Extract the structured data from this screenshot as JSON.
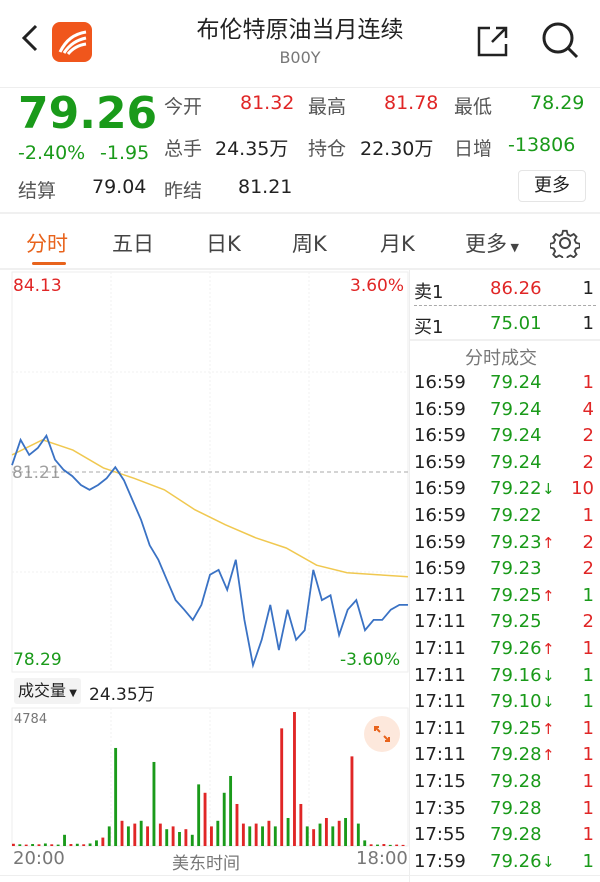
{
  "header": {
    "title": "布伦特原油当月连续",
    "code": "B00Y",
    "icons": [
      "back-icon",
      "app-logo",
      "share-icon",
      "search-icon"
    ]
  },
  "quote": {
    "price": "79.26",
    "change_pct": "-2.40%",
    "change": "-1.95",
    "fields": [
      {
        "label": "今开",
        "value": "81.32",
        "color": "red"
      },
      {
        "label": "最高",
        "value": "81.78",
        "color": "red"
      },
      {
        "label": "最低",
        "value": "78.29",
        "color": "green"
      },
      {
        "label": "总手",
        "value": "24.35万",
        "color": "dark"
      },
      {
        "label": "持仓",
        "value": "22.30万",
        "color": "dark"
      },
      {
        "label": "日增",
        "value": "-13806",
        "color": "green"
      },
      {
        "label": "结算",
        "value": "79.04",
        "color": "dark"
      },
      {
        "label": "昨结",
        "value": "81.21",
        "color": "dark"
      }
    ],
    "more_button": "更多"
  },
  "tabs": [
    {
      "label": "分时",
      "active": true
    },
    {
      "label": "五日"
    },
    {
      "label": "日K"
    },
    {
      "label": "周K"
    },
    {
      "label": "月K"
    },
    {
      "label": "更多"
    }
  ],
  "colors": {
    "up": "#e02626",
    "down": "#1a9a1a",
    "price_line": "#3a72c4",
    "avg_line": "#f0c850",
    "accent": "#e8631c"
  },
  "chart_data": {
    "type": "line",
    "y_max_label": "84.13",
    "y_min_label": "78.29",
    "pct_max_label": "3.60%",
    "pct_min_label": "-3.60%",
    "ref_label": "81.21",
    "ylim": [
      78.29,
      84.13
    ],
    "ref": 81.21,
    "price": [
      81.31,
      81.68,
      81.46,
      81.56,
      81.74,
      81.39,
      81.24,
      81.15,
      81.02,
      80.95,
      81.02,
      81.12,
      81.28,
      81.09,
      80.8,
      80.51,
      80.14,
      79.93,
      79.63,
      79.34,
      79.2,
      79.05,
      79.27,
      79.71,
      79.78,
      79.49,
      79.93,
      79.05,
      78.39,
      78.76,
      79.27,
      78.61,
      79.2,
      78.76,
      78.9,
      79.78,
      79.34,
      79.41,
      78.83,
      79.2,
      79.34,
      78.9,
      79.05,
      79.05,
      79.2,
      79.27,
      79.27
    ],
    "avg": [
      81.46,
      81.68,
      81.53,
      81.27,
      81.12,
      80.95,
      80.66,
      80.44,
      80.25,
      80.1,
      79.85,
      79.74,
      79.71,
      79.68
    ],
    "volume_label": "成交量",
    "volume_total": "24.35万",
    "volume_max_label": "4784",
    "volume_max": 4784,
    "volume": [
      [
        80,
        "u"
      ],
      [
        60,
        "d"
      ],
      [
        50,
        "u"
      ],
      [
        70,
        "d"
      ],
      [
        60,
        "u"
      ],
      [
        90,
        "d"
      ],
      [
        60,
        "u"
      ],
      [
        50,
        "d"
      ],
      [
        400,
        "d"
      ],
      [
        70,
        "u"
      ],
      [
        80,
        "d"
      ],
      [
        60,
        "u"
      ],
      [
        90,
        "d"
      ],
      [
        200,
        "d"
      ],
      [
        300,
        "u"
      ],
      [
        700,
        "d"
      ],
      [
        3500,
        "d"
      ],
      [
        900,
        "u"
      ],
      [
        700,
        "d"
      ],
      [
        800,
        "u"
      ],
      [
        900,
        "d"
      ],
      [
        700,
        "u"
      ],
      [
        3000,
        "d"
      ],
      [
        800,
        "u"
      ],
      [
        600,
        "d"
      ],
      [
        700,
        "u"
      ],
      [
        500,
        "d"
      ],
      [
        600,
        "u"
      ],
      [
        400,
        "d"
      ],
      [
        2200,
        "d"
      ],
      [
        1900,
        "u"
      ],
      [
        700,
        "u"
      ],
      [
        900,
        "d"
      ],
      [
        1900,
        "d"
      ],
      [
        2500,
        "d"
      ],
      [
        1500,
        "u"
      ],
      [
        800,
        "u"
      ],
      [
        700,
        "d"
      ],
      [
        800,
        "u"
      ],
      [
        700,
        "d"
      ],
      [
        900,
        "u"
      ],
      [
        700,
        "d"
      ],
      [
        4200,
        "u"
      ],
      [
        1000,
        "d"
      ],
      [
        4784,
        "u"
      ],
      [
        1500,
        "u"
      ],
      [
        700,
        "d"
      ],
      [
        600,
        "u"
      ],
      [
        800,
        "d"
      ],
      [
        1000,
        "u"
      ],
      [
        700,
        "d"
      ],
      [
        900,
        "u"
      ],
      [
        1000,
        "d"
      ],
      [
        3200,
        "u"
      ],
      [
        800,
        "d"
      ],
      [
        200,
        "d"
      ],
      [
        60,
        "u"
      ],
      [
        50,
        "d"
      ],
      [
        70,
        "u"
      ],
      [
        40,
        "d"
      ],
      [
        50,
        "u"
      ],
      [
        40,
        "u"
      ]
    ],
    "x_labels": [
      "20:00",
      "美东时间",
      "18:00"
    ]
  },
  "orderbook": {
    "sell": {
      "label": "卖1",
      "price": "86.26",
      "qty": "1"
    },
    "buy": {
      "label": "买1",
      "price": "75.01",
      "qty": "1"
    }
  },
  "ticks_title": "分时成交",
  "ticks": [
    {
      "time": "16:59",
      "price": "79.24",
      "arrow": "",
      "qty": "1",
      "qc": "red"
    },
    {
      "time": "16:59",
      "price": "79.24",
      "arrow": "",
      "qty": "4",
      "qc": "red"
    },
    {
      "time": "16:59",
      "price": "79.24",
      "arrow": "",
      "qty": "2",
      "qc": "red"
    },
    {
      "time": "16:59",
      "price": "79.24",
      "arrow": "",
      "qty": "2",
      "qc": "red"
    },
    {
      "time": "16:59",
      "price": "79.22",
      "arrow": "↓",
      "qty": "10",
      "qc": "red"
    },
    {
      "time": "16:59",
      "price": "79.22",
      "arrow": "",
      "qty": "1",
      "qc": "red"
    },
    {
      "time": "16:59",
      "price": "79.23",
      "arrow": "↑",
      "qty": "2",
      "qc": "red"
    },
    {
      "time": "16:59",
      "price": "79.23",
      "arrow": "",
      "qty": "2",
      "qc": "red"
    },
    {
      "time": "17:11",
      "price": "79.25",
      "arrow": "↑",
      "qty": "1",
      "qc": "green"
    },
    {
      "time": "17:11",
      "price": "79.25",
      "arrow": "",
      "qty": "2",
      "qc": "red"
    },
    {
      "time": "17:11",
      "price": "79.26",
      "arrow": "↑",
      "qty": "1",
      "qc": "red"
    },
    {
      "time": "17:11",
      "price": "79.16",
      "arrow": "↓",
      "qty": "1",
      "qc": "green"
    },
    {
      "time": "17:11",
      "price": "79.10",
      "arrow": "↓",
      "qty": "1",
      "qc": "green"
    },
    {
      "time": "17:11",
      "price": "79.25",
      "arrow": "↑",
      "qty": "1",
      "qc": "red"
    },
    {
      "time": "17:11",
      "price": "79.28",
      "arrow": "↑",
      "qty": "1",
      "qc": "red"
    },
    {
      "time": "17:15",
      "price": "79.28",
      "arrow": "",
      "qty": "1",
      "qc": "red"
    },
    {
      "time": "17:35",
      "price": "79.28",
      "arrow": "",
      "qty": "1",
      "qc": "red"
    },
    {
      "time": "17:55",
      "price": "79.28",
      "arrow": "",
      "qty": "1",
      "qc": "red"
    },
    {
      "time": "17:59",
      "price": "79.26",
      "arrow": "↓",
      "qty": "1",
      "qc": "green"
    }
  ]
}
